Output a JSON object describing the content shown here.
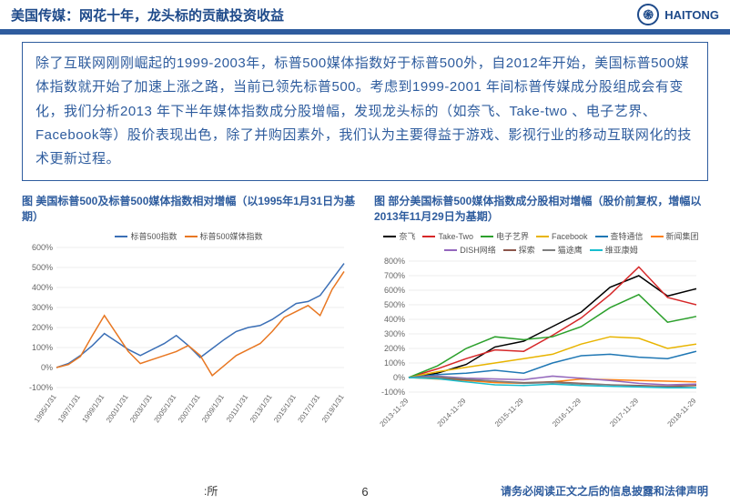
{
  "header": {
    "title": "美国传媒：网花十年，龙头标的贡献投资收益",
    "brand": "HAITONG"
  },
  "body_text": "除了互联网刚刚崛起的1999-2003年，标普500媒体指数好于标普500外，自2012年开始，美国标普500媒体指数就开始了加速上涨之路，当前已领先标普500。考虑到1999-2001 年间标普传媒成分股组成会有变化，我们分析2013 年下半年媒体指数成分股增幅，发现龙头标的（如奈飞、Take-two 、电子艺界、Facebook等）股价表现出色，除了并购因素外，我们认为主要得益于游戏、影视行业的移动互联网化的技术更新过程。",
  "chart1": {
    "title": "图 美国标普500及标普500媒体指数相对增幅（以1995年1月31日为基期）",
    "legend": [
      {
        "label": "标普500指数",
        "color": "#3b6fb6"
      },
      {
        "label": "标普500媒体指数",
        "color": "#e87722"
      }
    ],
    "yaxis": {
      "min": -100,
      "max": 600,
      "step": 100,
      "labels": [
        "-100%",
        "0%",
        "100%",
        "200%",
        "300%",
        "400%",
        "500%",
        "600%"
      ]
    },
    "xaxis": {
      "labels": [
        "1995/1/31",
        "1997/1/31",
        "1999/1/31",
        "2001/1/31",
        "2003/1/31",
        "2005/1/31",
        "2007/1/31",
        "2009/1/31",
        "2011/1/31",
        "2013/1/31",
        "2015/1/31",
        "2017/1/31",
        "2019/1/31"
      ]
    },
    "series": [
      {
        "color": "#3b6fb6",
        "values": [
          0,
          20,
          60,
          110,
          170,
          130,
          90,
          60,
          90,
          120,
          160,
          110,
          50,
          95,
          140,
          180,
          200,
          210,
          240,
          280,
          320,
          330,
          360,
          440,
          520
        ]
      },
      {
        "color": "#e87722",
        "values": [
          0,
          15,
          55,
          160,
          260,
          170,
          80,
          20,
          40,
          60,
          80,
          110,
          60,
          -40,
          10,
          60,
          90,
          120,
          180,
          250,
          280,
          310,
          260,
          390,
          480
        ]
      }
    ]
  },
  "chart2": {
    "title": "图 部分美国标普500媒体指数成分股相对增幅（股价前复权，增幅以2013年11月29日为基期）",
    "legend": [
      {
        "label": "奈飞",
        "color": "#000000"
      },
      {
        "label": "Take-Two",
        "color": "#d62728"
      },
      {
        "label": "电子艺界",
        "color": "#2ca02c"
      },
      {
        "label": "Facebook",
        "color": "#e8b400"
      },
      {
        "label": "查特通信",
        "color": "#1f77b4"
      },
      {
        "label": "新闻集团",
        "color": "#ff7f0e"
      },
      {
        "label": "DISH网络",
        "color": "#9467bd"
      },
      {
        "label": "探索",
        "color": "#8c564b"
      },
      {
        "label": "猫途鹰",
        "color": "#7f7f7f"
      },
      {
        "label": "维亚康姆",
        "color": "#17becf"
      }
    ],
    "yaxis": {
      "min": -100,
      "max": 800,
      "step": 100,
      "labels": [
        "-100%",
        "0%",
        "100%",
        "200%",
        "300%",
        "400%",
        "500%",
        "600%",
        "700%",
        "800%"
      ]
    },
    "xaxis": {
      "labels": [
        "2013-11-29",
        "2014-11-29",
        "2015-11-29",
        "2016-11-29",
        "2017-11-29",
        "2018-11-29"
      ]
    },
    "series": [
      {
        "color": "#000000",
        "values": [
          0,
          30,
          90,
          210,
          250,
          350,
          450,
          620,
          700,
          560,
          610
        ]
      },
      {
        "color": "#d62728",
        "values": [
          0,
          60,
          130,
          190,
          180,
          290,
          410,
          570,
          760,
          550,
          500
        ]
      },
      {
        "color": "#2ca02c",
        "values": [
          0,
          80,
          200,
          280,
          260,
          280,
          350,
          480,
          570,
          380,
          420
        ]
      },
      {
        "color": "#e8b400",
        "values": [
          0,
          40,
          70,
          100,
          130,
          160,
          230,
          280,
          270,
          200,
          230
        ]
      },
      {
        "color": "#1f77b4",
        "values": [
          0,
          20,
          30,
          50,
          30,
          100,
          150,
          160,
          140,
          130,
          180
        ]
      },
      {
        "color": "#ff7f0e",
        "values": [
          0,
          -10,
          -20,
          -35,
          -40,
          -30,
          -10,
          -15,
          -20,
          -25,
          -30
        ]
      },
      {
        "color": "#9467bd",
        "values": [
          0,
          10,
          -5,
          -10,
          -15,
          10,
          -5,
          -20,
          -40,
          -50,
          -45
        ]
      },
      {
        "color": "#8c564b",
        "values": [
          0,
          -5,
          -15,
          -25,
          -35,
          -30,
          -40,
          -50,
          -55,
          -60,
          -55
        ]
      },
      {
        "color": "#7f7f7f",
        "values": [
          0,
          5,
          -10,
          -25,
          -40,
          -35,
          -45,
          -50,
          -60,
          -65,
          -70
        ]
      },
      {
        "color": "#17becf",
        "values": [
          0,
          -8,
          -30,
          -50,
          -55,
          -45,
          -55,
          -60,
          -65,
          -70,
          -70
        ]
      }
    ]
  },
  "footer": {
    "source": ":所",
    "page": "6",
    "disclaimer": "请务必阅读正文之后的信息披露和法律声明"
  }
}
